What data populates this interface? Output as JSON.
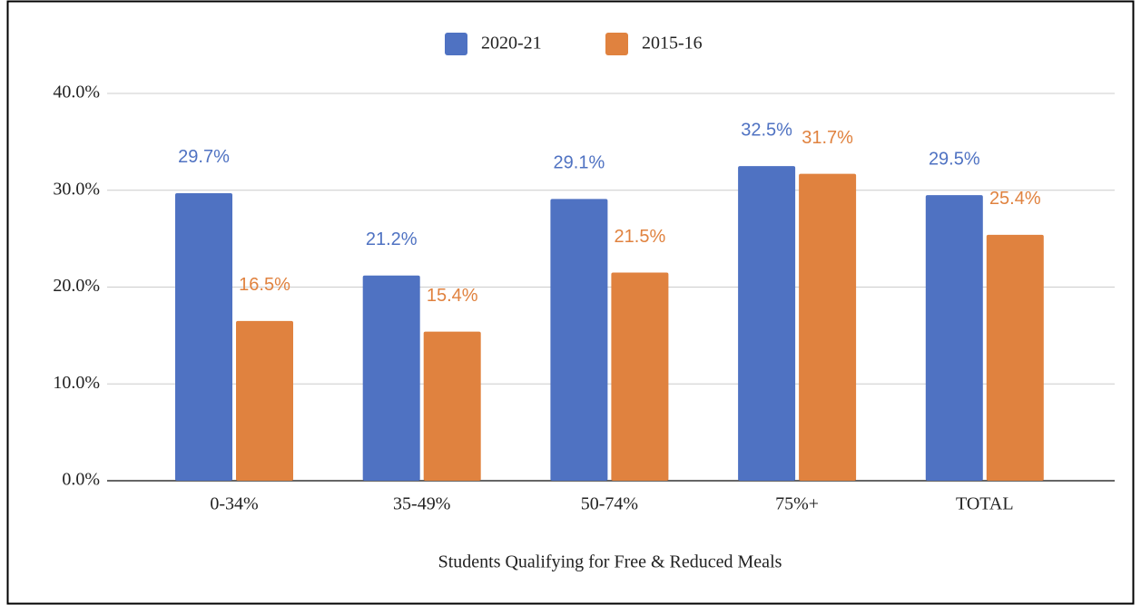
{
  "chart_data": {
    "type": "bar",
    "x_label": "Students Qualifying for Free & Reduced Meals",
    "categories": [
      "0-34%",
      "35-49%",
      "50-74%",
      "75%+",
      "TOTAL"
    ],
    "series": [
      {
        "name": "2020-21",
        "color": "#4f72c2",
        "values": [
          29.7,
          21.2,
          29.1,
          32.5,
          29.5
        ],
        "value_labels": [
          "29.7%",
          "21.2%",
          "29.1%",
          "32.5%",
          "29.5%"
        ]
      },
      {
        "name": "2015-16",
        "color": "#e0823f",
        "values": [
          16.5,
          15.4,
          21.5,
          31.7,
          25.4
        ],
        "value_labels": [
          "16.5%",
          "15.4%",
          "21.5%",
          "31.7%",
          "25.4%"
        ]
      }
    ],
    "ylim": [
      0,
      40
    ],
    "yticks": [
      {
        "value": 0,
        "label": "0.0%"
      },
      {
        "value": 10,
        "label": "10.0%"
      },
      {
        "value": 20,
        "label": "20.0%"
      },
      {
        "value": 30,
        "label": "30.0%"
      },
      {
        "value": 40,
        "label": "40.0%"
      }
    ],
    "grid": true,
    "legend": "top"
  }
}
